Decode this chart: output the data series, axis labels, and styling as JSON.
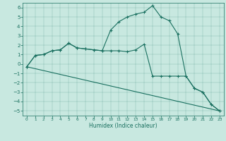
{
  "xlabel": "Humidex (Indice chaleur)",
  "background_color": "#c8e8e0",
  "line_color": "#1a7060",
  "xlim": [
    -0.5,
    23.5
  ],
  "ylim": [
    -5.5,
    6.5
  ],
  "yticks": [
    -5,
    -4,
    -3,
    -2,
    -1,
    0,
    1,
    2,
    3,
    4,
    5,
    6
  ],
  "xticks": [
    0,
    1,
    2,
    3,
    4,
    5,
    6,
    7,
    8,
    9,
    10,
    11,
    12,
    13,
    14,
    15,
    16,
    17,
    18,
    19,
    20,
    21,
    22,
    23
  ],
  "line1_x": [
    0,
    1,
    2,
    3,
    4,
    5,
    6,
    7,
    8,
    9,
    10,
    11,
    12,
    13,
    14,
    15,
    16,
    17,
    18,
    19,
    20,
    21,
    22,
    23
  ],
  "line1_y": [
    -0.3,
    0.9,
    1.0,
    1.4,
    1.5,
    2.2,
    1.7,
    1.6,
    1.5,
    1.4,
    3.6,
    4.5,
    5.0,
    5.3,
    5.5,
    6.2,
    5.0,
    4.6,
    3.2,
    -1.3,
    -2.6,
    -3.0,
    -4.3,
    -5.0
  ],
  "line2_x": [
    0,
    1,
    2,
    3,
    4,
    5,
    6,
    7,
    8,
    9,
    10,
    11,
    12,
    13,
    14,
    15,
    16,
    17,
    18,
    19,
    20,
    21,
    22,
    23
  ],
  "line2_y": [
    -0.3,
    0.9,
    1.0,
    1.4,
    1.5,
    2.2,
    1.7,
    1.6,
    1.5,
    1.4,
    1.4,
    1.4,
    1.3,
    1.5,
    2.1,
    -1.3,
    -1.3,
    -1.3,
    -1.3,
    -1.3,
    -2.6,
    -3.0,
    -4.3,
    -5.0
  ],
  "line3_x": [
    0,
    23
  ],
  "line3_y": [
    -0.3,
    -5.0
  ],
  "marker": "+"
}
